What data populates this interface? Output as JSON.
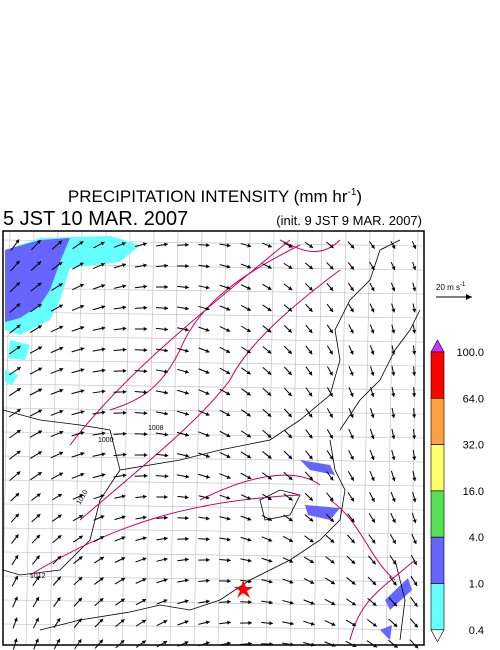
{
  "header": {
    "title": "PRECIPITATION INTENSITY (mm hr",
    "title_exp": "-1",
    "title_close": ")",
    "valid_time": "5 JST 10 MAR. 2007",
    "init_time": "(init. 9 JST 9 MAR. 2007)"
  },
  "wind_scale": {
    "label": "20 m s",
    "label_exp": "-1"
  },
  "colorbar": {
    "labels": [
      "100.0",
      "64.0",
      "32.0",
      "16.0",
      "4.0",
      "1.0",
      "0.4"
    ],
    "colors": [
      "#cc33ff",
      "#ff0000",
      "#ffa040",
      "#ffff66",
      "#55e055",
      "#6666ff",
      "#66ffff",
      "#ffffff"
    ]
  },
  "map": {
    "contour_labels": [
      "1000",
      "1008",
      "1010",
      "1012"
    ]
  }
}
